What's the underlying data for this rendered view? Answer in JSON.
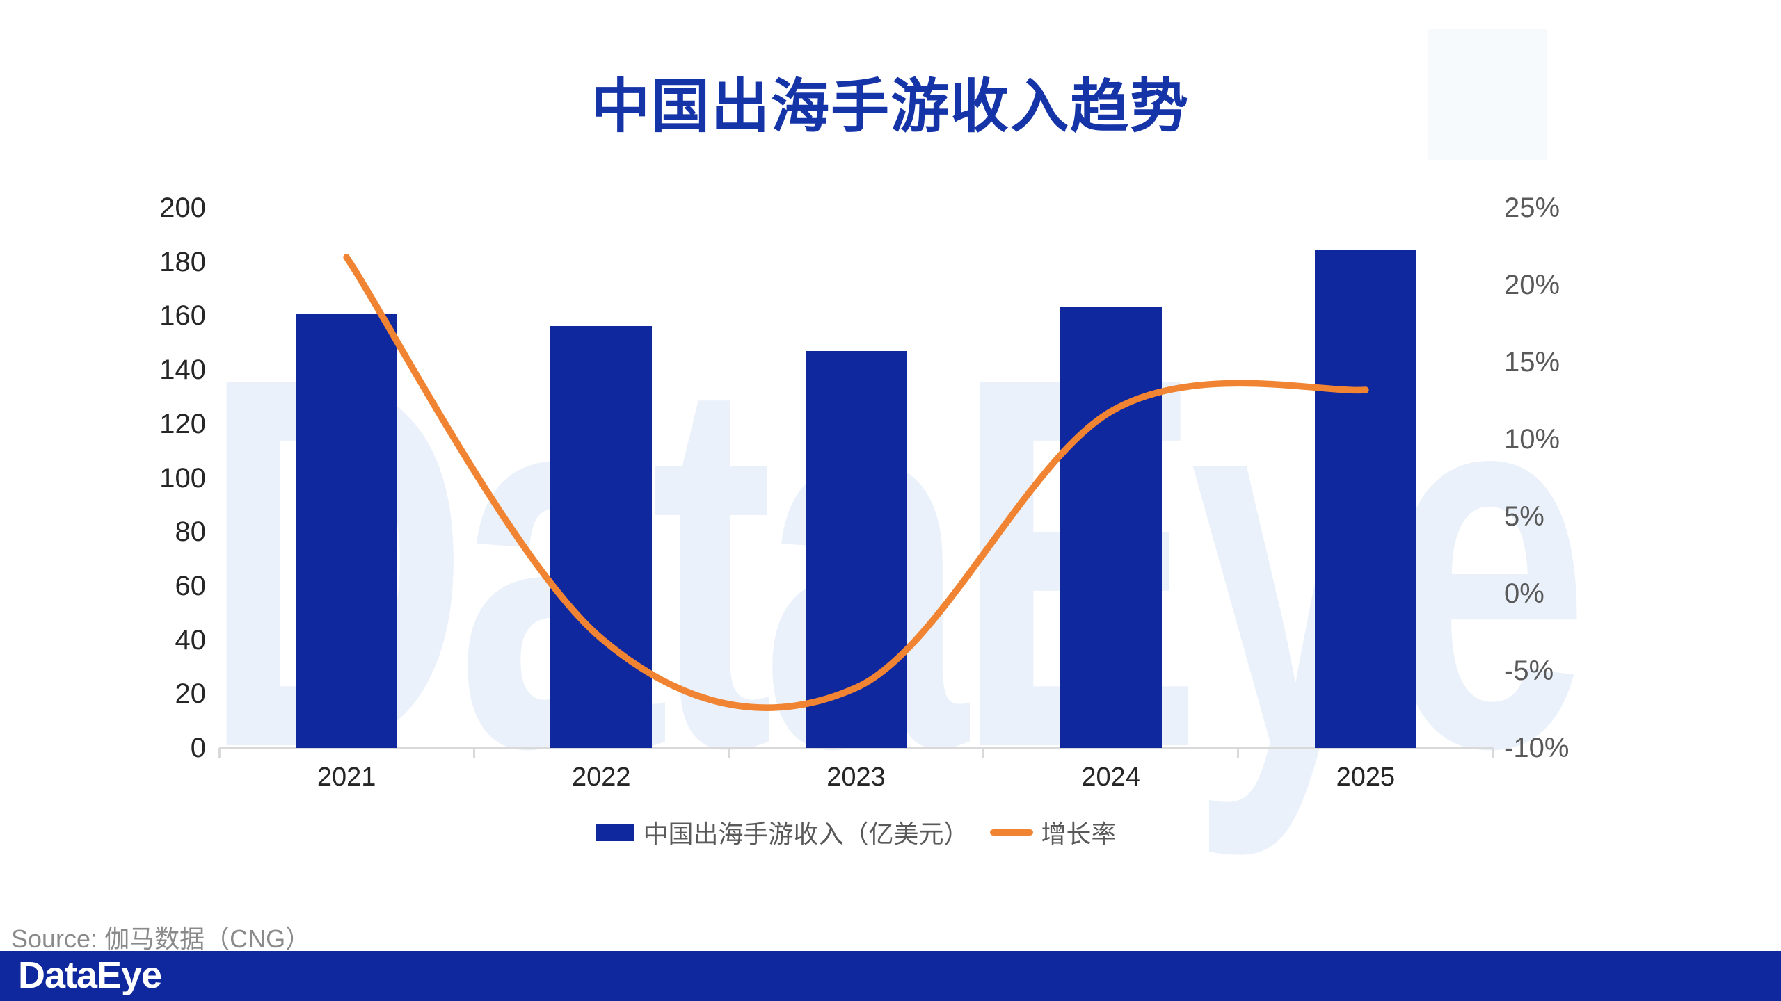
{
  "title": "中国出海手游收入趋势",
  "watermark": "DataEye",
  "source": "Source: 伽马数据（CNG）",
  "footer": {
    "logo": "DataEye"
  },
  "legend": [
    {
      "type": "bar",
      "label": "中国出海手游收入（亿美元）"
    },
    {
      "type": "line",
      "label": "增长率"
    }
  ],
  "colors": {
    "title": "#1434A8",
    "bar": "#10289E",
    "line": "#F08432",
    "footer_bg": "#10289E",
    "axis_line": "#D9D9D9",
    "axis_left_text": "#262626",
    "axis_right_text": "#595959",
    "legend_text": "#595959",
    "source_text": "#8A8A8A",
    "watermark": "#EAF1FA",
    "watermark_block": "#F6FAFD"
  },
  "chart_data": {
    "type": "combo-bar-line",
    "categories": [
      "2021",
      "2022",
      "2023",
      "2024",
      "2025"
    ],
    "series": [
      {
        "name": "中国出海手游收入（亿美元）",
        "type": "bar",
        "axis": "left",
        "values": [
          160.9,
          156.2,
          147.0,
          163.3,
          184.6
        ]
      },
      {
        "name": "增长率",
        "type": "line",
        "axis": "right",
        "unit": "%",
        "values": [
          21.8,
          -2.9,
          -6.1,
          11.8,
          13.2
        ]
      }
    ],
    "left_axis": {
      "min": 0,
      "max": 200,
      "step": 20,
      "ticks": [
        "0",
        "20",
        "40",
        "60",
        "80",
        "100",
        "120",
        "140",
        "160",
        "180",
        "200"
      ]
    },
    "right_axis": {
      "min": -10,
      "max": 25,
      "step": 5,
      "ticks": [
        "-10%",
        "-5%",
        "0%",
        "5%",
        "10%",
        "15%",
        "20%",
        "25%"
      ]
    },
    "grid": false,
    "legend_position": "bottom"
  }
}
